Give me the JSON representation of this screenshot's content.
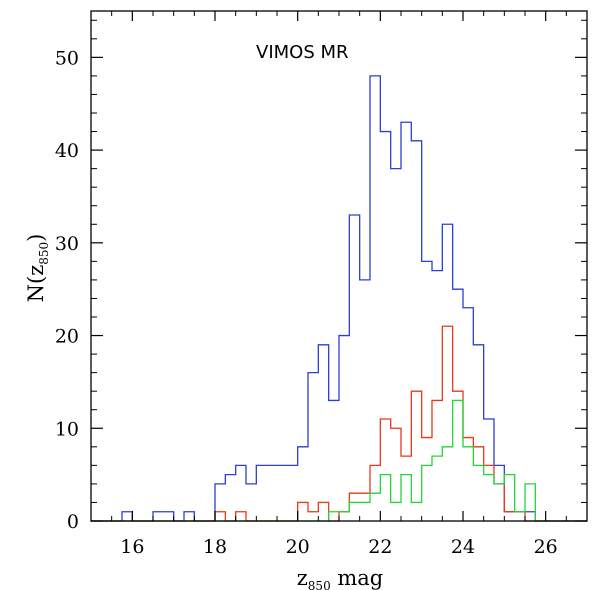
{
  "chart_data": {
    "type": "histogram",
    "title": "VIMOS MR",
    "xlabel": {
      "base": "z",
      "sub": "850",
      "suffix": " mag"
    },
    "ylabel": {
      "prefix": "N(",
      "base": "z",
      "sub": "850",
      "suffix": ")"
    },
    "xlim": [
      15,
      27
    ],
    "ylim": [
      0,
      55
    ],
    "xticks": [
      16,
      18,
      20,
      22,
      24,
      26
    ],
    "yticks": [
      0,
      10,
      20,
      30,
      40,
      50
    ],
    "grid": false,
    "bin_edges": [
      15.0,
      15.25,
      15.5,
      15.75,
      16.0,
      16.25,
      16.5,
      16.75,
      17.0,
      17.25,
      17.5,
      17.75,
      18.0,
      18.25,
      18.5,
      18.75,
      19.0,
      19.25,
      19.5,
      19.75,
      20.0,
      20.25,
      20.5,
      20.75,
      21.0,
      21.25,
      21.5,
      21.75,
      22.0,
      22.25,
      22.5,
      22.75,
      23.0,
      23.25,
      23.5,
      23.75,
      24.0,
      24.25,
      24.5,
      24.75,
      25.0,
      25.25,
      25.5,
      25.75,
      26.0,
      26.25,
      26.5,
      26.75,
      27.0
    ],
    "series": [
      {
        "color": "#2a3fd6",
        "values": [
          0,
          0,
          0,
          1,
          0,
          0,
          1,
          1,
          0,
          1,
          0,
          0,
          4,
          5,
          6,
          4,
          6,
          6,
          6,
          6,
          8,
          16,
          19,
          13,
          20,
          33,
          26,
          48,
          42,
          38,
          43,
          41,
          28,
          27,
          32,
          25,
          23,
          19,
          11,
          6,
          1,
          1,
          1,
          0,
          0,
          0,
          0,
          0
        ]
      },
      {
        "color": "#e8391a",
        "values": [
          0,
          0,
          0,
          0,
          0,
          0,
          0,
          0,
          0,
          0,
          0,
          0,
          1,
          0,
          1,
          0,
          0,
          0,
          0,
          0,
          2,
          1,
          2,
          0,
          1,
          3,
          3,
          6,
          11,
          10,
          7,
          14,
          9,
          13,
          21,
          14,
          9,
          8,
          6,
          4,
          1,
          1,
          0,
          0,
          0,
          0,
          0,
          0
        ]
      },
      {
        "color": "#22d63a",
        "values": [
          0,
          0,
          0,
          0,
          0,
          0,
          0,
          0,
          0,
          0,
          0,
          0,
          0,
          0,
          0,
          0,
          0,
          0,
          0,
          0,
          0,
          0,
          0,
          1,
          1,
          2,
          2,
          3,
          5,
          2,
          5,
          2,
          6,
          7,
          8,
          13,
          8,
          6,
          5,
          4,
          5,
          1,
          4,
          0,
          0,
          0,
          0,
          0
        ]
      }
    ]
  }
}
